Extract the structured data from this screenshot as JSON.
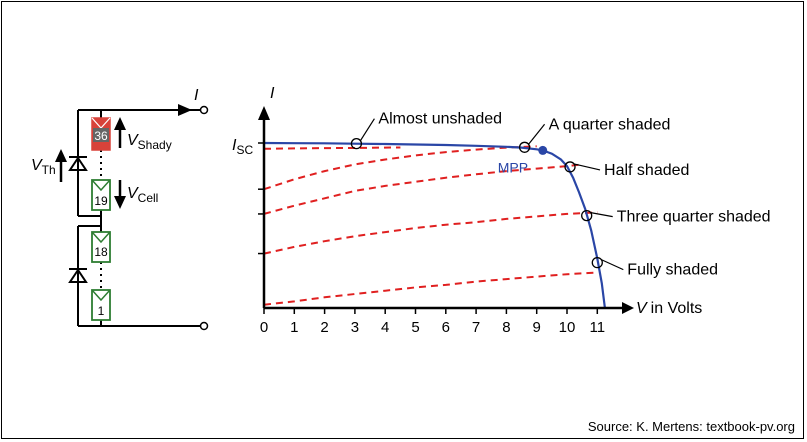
{
  "circuit": {
    "current_label": "I",
    "v_shady": {
      "main": "V",
      "sub": "Shady"
    },
    "v_cell": {
      "main": "V",
      "sub": "Cell"
    },
    "v_th": {
      "main": "V",
      "sub": "Th"
    },
    "cells": [
      {
        "number": "36",
        "shaded": true
      },
      {
        "number": "19",
        "shaded": false
      },
      {
        "number": "18",
        "shaded": false
      },
      {
        "number": "1",
        "shaded": false
      }
    ],
    "colors": {
      "shaded_fill": "#d8423a",
      "cell_stroke": "#2e7d32",
      "wire": "#000000"
    }
  },
  "chart_data": {
    "type": "line",
    "xlabel": "V in Volts",
    "ylabel": "I",
    "isc_label": {
      "main": "I",
      "sub": "SC"
    },
    "xlim": [
      0,
      11.3
    ],
    "ylim": [
      0,
      1.05
    ],
    "x_ticks": [
      0,
      1,
      2,
      3,
      4,
      5,
      6,
      7,
      8,
      9,
      10,
      11
    ],
    "mpp": {
      "label": "MPP",
      "x": 9.2,
      "y": 0.955
    },
    "series": [
      {
        "style": "solid",
        "color": "#2a46a6",
        "points": [
          [
            0,
            1.0
          ],
          [
            1,
            0.999
          ],
          [
            2,
            0.998
          ],
          [
            3,
            0.996
          ],
          [
            4,
            0.994
          ],
          [
            5,
            0.991
          ],
          [
            6,
            0.988
          ],
          [
            7,
            0.983
          ],
          [
            8,
            0.977
          ],
          [
            8.5,
            0.972
          ],
          [
            9,
            0.962
          ],
          [
            9.2,
            0.955
          ],
          [
            9.5,
            0.935
          ],
          [
            9.8,
            0.9
          ],
          [
            10,
            0.86
          ],
          [
            10.2,
            0.79
          ],
          [
            10.4,
            0.7
          ],
          [
            10.6,
            0.6
          ],
          [
            10.8,
            0.47
          ],
          [
            11.0,
            0.3
          ],
          [
            11.15,
            0.15
          ],
          [
            11.25,
            0.0
          ]
        ]
      }
    ],
    "shaded_curves": [
      {
        "label": "Almost unshaded",
        "color": "#e02020",
        "points": [
          [
            0,
            0.965
          ],
          [
            1,
            0.967
          ],
          [
            2,
            0.969
          ],
          [
            3,
            0.97
          ],
          [
            4,
            0.972
          ],
          [
            4.5,
            0.973
          ]
        ]
      },
      {
        "label": "A quarter shaded",
        "color": "#e02020",
        "points": [
          [
            0,
            0.72
          ],
          [
            1,
            0.78
          ],
          [
            2,
            0.83
          ],
          [
            3,
            0.87
          ],
          [
            4,
            0.9
          ],
          [
            5,
            0.925
          ],
          [
            6,
            0.945
          ],
          [
            7,
            0.96
          ],
          [
            8,
            0.972
          ],
          [
            9,
            0.98
          ]
        ]
      },
      {
        "label": "Half shaded",
        "color": "#e02020",
        "points": [
          [
            0,
            0.57
          ],
          [
            1,
            0.62
          ],
          [
            2,
            0.665
          ],
          [
            3,
            0.71
          ],
          [
            4,
            0.74
          ],
          [
            5,
            0.765
          ],
          [
            6,
            0.79
          ],
          [
            7,
            0.81
          ],
          [
            8,
            0.83
          ],
          [
            9,
            0.845
          ],
          [
            10,
            0.86
          ],
          [
            10.5,
            0.87
          ]
        ]
      },
      {
        "label": "Three quarter shaded",
        "color": "#e02020",
        "points": [
          [
            0,
            0.33
          ],
          [
            1,
            0.37
          ],
          [
            2,
            0.405
          ],
          [
            3,
            0.435
          ],
          [
            4,
            0.46
          ],
          [
            5,
            0.485
          ],
          [
            6,
            0.505
          ],
          [
            7,
            0.52
          ],
          [
            8,
            0.54
          ],
          [
            9,
            0.555
          ],
          [
            10,
            0.57
          ],
          [
            11,
            0.58
          ]
        ]
      },
      {
        "label": "Fully shaded",
        "color": "#e02020",
        "points": [
          [
            0,
            0.02
          ],
          [
            1,
            0.04
          ],
          [
            2,
            0.065
          ],
          [
            3,
            0.085
          ],
          [
            4,
            0.105
          ],
          [
            5,
            0.125
          ],
          [
            6,
            0.14
          ],
          [
            7,
            0.16
          ],
          [
            8,
            0.175
          ],
          [
            9,
            0.19
          ],
          [
            10,
            0.205
          ],
          [
            11,
            0.215
          ]
        ]
      }
    ],
    "annotations": [
      {
        "text": "Almost unshaded",
        "x": 3.05,
        "y": 0.996
      },
      {
        "text": "A quarter shaded",
        "x": 8.6,
        "y": 0.974
      },
      {
        "text": "Half shaded",
        "x": 10.1,
        "y": 0.855
      },
      {
        "text": "Three quarter shaded",
        "x": 10.65,
        "y": 0.56
      },
      {
        "text": "Fully shaded",
        "x": 11.0,
        "y": 0.275
      }
    ],
    "colors": {
      "axis": "#000000",
      "main_curve": "#2a46a6",
      "shaded_curves": "#e02020"
    }
  },
  "source": "Source: K. Mertens: textbook-pv.org"
}
